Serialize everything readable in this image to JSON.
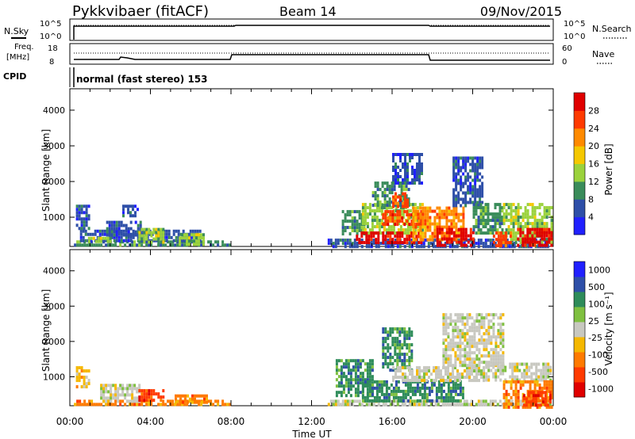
{
  "header": {
    "station": "Pykkvibaer (fitACF)",
    "beam": "Beam 14",
    "date": "09/Nov/2015"
  },
  "panels": {
    "nsky": {
      "label": "N.Sky",
      "ticks_left": [
        "10^5",
        "10^0"
      ],
      "ticks_right": [
        "10^5",
        "10^0"
      ],
      "right_label": "N.Search"
    },
    "freq": {
      "label_line1": "Freq.",
      "label_line2": "[MHz]",
      "ticks_left": [
        "18",
        "8"
      ],
      "ticks_right": [
        "60",
        "0"
      ],
      "right_label": "Nave"
    },
    "cpid": {
      "label": "CPID",
      "text": "normal (fast stereo) 153"
    }
  },
  "colors": {
    "power": [
      "#2020ff",
      "#2e4fa8",
      "#3a8c5a",
      "#9bd23c",
      "#f5c800",
      "#ff8a00",
      "#ff3a00",
      "#e00000"
    ],
    "velocity": [
      "#2020ff",
      "#2e4fa8",
      "#2e8c5a",
      "#7fc040",
      "#c8c8c0",
      "#f5b800",
      "#ff7a00",
      "#ff3a00",
      "#e00000"
    ]
  },
  "chart_data": [
    {
      "type": "heatmap",
      "quantity": "power",
      "xlabel": "",
      "ylabel": "Slant Range [km]",
      "xlim": [
        "00:00",
        "00:00"
      ],
      "ylim": [
        180,
        4600
      ],
      "yticks": [
        1000,
        2000,
        3000,
        4000
      ],
      "colorbar_label": "Power [dB]",
      "colorbar_ticks": [
        "4",
        "8",
        "12",
        "16",
        "20",
        "24",
        "28"
      ],
      "cells": [
        {
          "t0": 0.2,
          "t1": 7.9,
          "r0": 180,
          "r1": 350,
          "level": 2
        },
        {
          "t0": 0.5,
          "t1": 6.5,
          "r0": 350,
          "r1": 650,
          "level": 1
        },
        {
          "t0": 0.3,
          "t1": 0.9,
          "r0": 700,
          "r1": 1350,
          "level": 1
        },
        {
          "t0": 1.8,
          "t1": 3.5,
          "r0": 500,
          "r1": 900,
          "level": 1
        },
        {
          "t0": 2.6,
          "t1": 3.4,
          "r0": 1000,
          "r1": 1350,
          "level": 1
        },
        {
          "t0": 3.4,
          "t1": 4.6,
          "r0": 300,
          "r1": 700,
          "level": 3
        },
        {
          "t0": 0.9,
          "t1": 2.0,
          "r0": 300,
          "r1": 450,
          "level": 3
        },
        {
          "t0": 5.4,
          "t1": 6.6,
          "r0": 250,
          "r1": 550,
          "level": 3
        },
        {
          "t0": 12.8,
          "t1": 23.9,
          "r0": 180,
          "r1": 400,
          "level": 1
        },
        {
          "t0": 13.5,
          "t1": 14.6,
          "r0": 500,
          "r1": 1200,
          "level": 2
        },
        {
          "t0": 14.5,
          "t1": 17.5,
          "r0": 600,
          "r1": 1400,
          "level": 3
        },
        {
          "t0": 15.0,
          "t1": 16.8,
          "r0": 1300,
          "r1": 2000,
          "level": 2
        },
        {
          "t0": 16.0,
          "t1": 17.5,
          "r0": 2000,
          "r1": 2800,
          "level": 1
        },
        {
          "t0": 14.2,
          "t1": 17.5,
          "r0": 300,
          "r1": 600,
          "level": 7
        },
        {
          "t0": 15.5,
          "t1": 17.4,
          "r0": 800,
          "r1": 1200,
          "level": 6
        },
        {
          "t0": 16.0,
          "t1": 16.8,
          "r0": 1300,
          "r1": 1700,
          "level": 6
        },
        {
          "t0": 17.0,
          "t1": 19.5,
          "r0": 350,
          "r1": 1300,
          "level": 5
        },
        {
          "t0": 18.2,
          "t1": 20.0,
          "r0": 180,
          "r1": 700,
          "level": 7
        },
        {
          "t0": 19.0,
          "t1": 20.5,
          "r0": 1300,
          "r1": 2700,
          "level": 1
        },
        {
          "t0": 20.0,
          "t1": 21.5,
          "r0": 600,
          "r1": 1400,
          "level": 2
        },
        {
          "t0": 21.5,
          "t1": 23.9,
          "r0": 300,
          "r1": 1400,
          "level": 3
        },
        {
          "t0": 22.2,
          "t1": 23.9,
          "r0": 180,
          "r1": 700,
          "level": 7
        },
        {
          "t0": 21.0,
          "t1": 21.9,
          "r0": 180,
          "r1": 600,
          "level": 6
        }
      ]
    },
    {
      "type": "heatmap",
      "quantity": "velocity",
      "xlabel": "Time UT",
      "ylabel": "Slant Range [km]",
      "xticks": [
        "00:00",
        "04:00",
        "08:00",
        "12:00",
        "16:00",
        "20:00",
        "00:00"
      ],
      "ylim": [
        180,
        4600
      ],
      "yticks": [
        1000,
        2000,
        3000,
        4000
      ],
      "colorbar_label": "Velocity [m s⁻¹]",
      "colorbar_ticks": [
        "1000",
        "500",
        "100",
        "25",
        "-25",
        "-100",
        "-500",
        "-1000"
      ],
      "cells": [
        {
          "t0": 0.2,
          "t1": 7.9,
          "r0": 180,
          "r1": 350,
          "level": 6
        },
        {
          "t0": 0.3,
          "t1": 0.9,
          "r0": 700,
          "r1": 1300,
          "level": 5
        },
        {
          "t0": 1.5,
          "t1": 3.5,
          "r0": 350,
          "r1": 800,
          "level": 4
        },
        {
          "t0": 3.4,
          "t1": 4.6,
          "r0": 300,
          "r1": 650,
          "level": 7
        },
        {
          "t0": 5.2,
          "t1": 6.8,
          "r0": 250,
          "r1": 500,
          "level": 6
        },
        {
          "t0": 12.8,
          "t1": 23.9,
          "r0": 180,
          "r1": 350,
          "level": 4
        },
        {
          "t0": 13.2,
          "t1": 15.0,
          "r0": 500,
          "r1": 1500,
          "level": 2
        },
        {
          "t0": 14.5,
          "t1": 19.5,
          "r0": 350,
          "r1": 900,
          "level": 2
        },
        {
          "t0": 15.5,
          "t1": 17.0,
          "r0": 1200,
          "r1": 2400,
          "level": 2
        },
        {
          "t0": 16.0,
          "t1": 20.5,
          "r0": 900,
          "r1": 1300,
          "level": 4
        },
        {
          "t0": 18.5,
          "t1": 21.5,
          "r0": 1300,
          "r1": 2800,
          "level": 4
        },
        {
          "t0": 20.5,
          "t1": 23.9,
          "r0": 900,
          "r1": 1400,
          "level": 4
        },
        {
          "t0": 21.5,
          "t1": 23.9,
          "r0": 180,
          "r1": 900,
          "level": 6
        },
        {
          "t0": 22.5,
          "t1": 23.9,
          "r0": 180,
          "r1": 600,
          "level": 7
        }
      ]
    }
  ]
}
